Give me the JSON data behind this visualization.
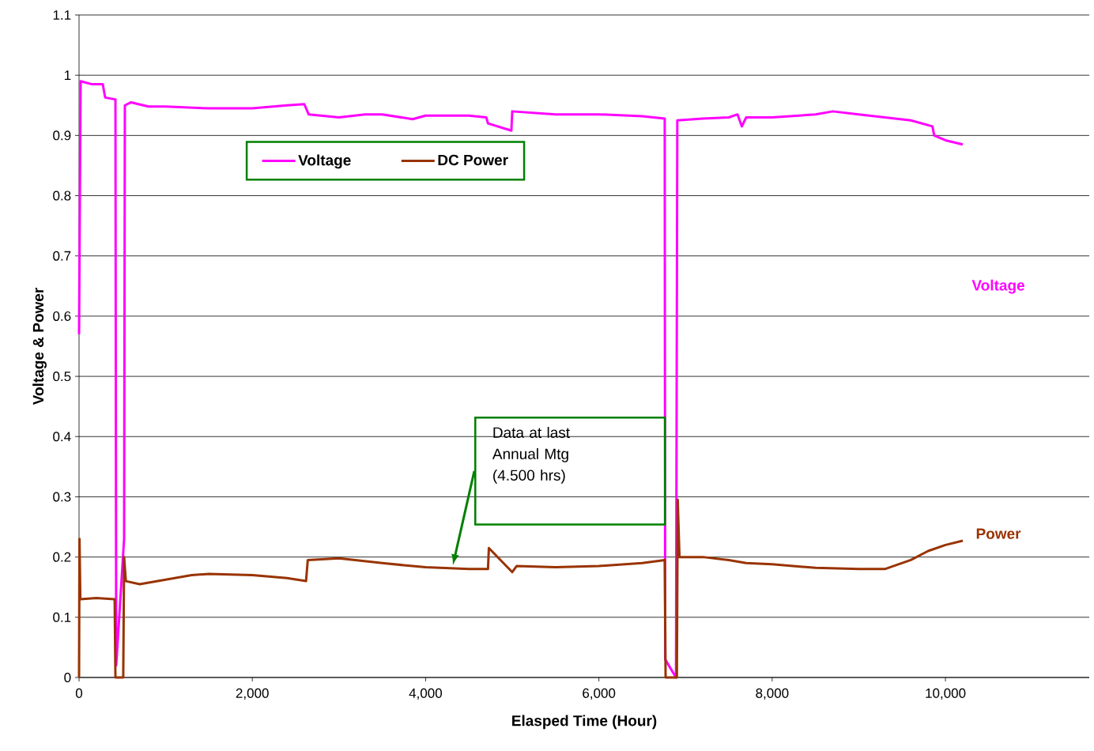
{
  "chart_data": {
    "type": "line",
    "xlabel": "Elasped Time (Hour)",
    "ylabel": "Voltage & Power",
    "xlim": [
      0,
      11660
    ],
    "ylim": [
      0,
      1.1
    ],
    "xticks": [
      0,
      {
        "value": 2000,
        "label": "2,000"
      },
      {
        "value": 4000,
        "label": "4,000"
      },
      {
        "value": 6000,
        "label": "6,000"
      },
      {
        "value": 8000,
        "label": "8,000"
      },
      {
        "value": 10000,
        "label": "10,000"
      }
    ],
    "yticks": [
      0,
      0.1,
      0.2,
      0.3,
      0.4,
      0.5,
      0.6,
      0.7,
      0.8,
      0.9,
      1,
      1.1
    ],
    "grid": "y",
    "legend": "top",
    "marker": "none",
    "line_style": "solid",
    "series": [
      {
        "name": "Voltage",
        "color": "#ff00ff",
        "x": [
          0,
          18,
          150,
          274,
          301,
          411,
          420,
          429,
          520,
          529,
          600,
          800,
          1000,
          1500,
          2000,
          2400,
          2600,
          2650,
          3000,
          3300,
          3500,
          3850,
          4000,
          4500,
          4700,
          4720,
          4990,
          5000,
          5500,
          6000,
          6500,
          6760,
          6765,
          6890,
          6905,
          7200,
          7500,
          7600,
          7650,
          7700,
          8000,
          8500,
          8700,
          9000,
          9300,
          9600,
          9850,
          9870,
          10000,
          10200
        ],
        "values": [
          0.57,
          0.99,
          0.985,
          0.985,
          0.963,
          0.96,
          0.96,
          0.02,
          0.23,
          0.95,
          0.955,
          0.948,
          0.948,
          0.945,
          0.945,
          0.95,
          0.952,
          0.935,
          0.93,
          0.935,
          0.935,
          0.927,
          0.933,
          0.933,
          0.93,
          0.92,
          0.908,
          0.94,
          0.935,
          0.935,
          0.932,
          0.928,
          0.03,
          0.0,
          0.925,
          0.928,
          0.93,
          0.935,
          0.915,
          0.93,
          0.93,
          0.935,
          0.94,
          0.935,
          0.93,
          0.925,
          0.915,
          0.9,
          0.892,
          0.885
        ]
      },
      {
        "name": "DC Power",
        "color": "#993300",
        "x": [
          0,
          5,
          15,
          200,
          411,
          420,
          510,
          520,
          540,
          700,
          900,
          1100,
          1300,
          1500,
          2000,
          2400,
          2620,
          2640,
          3000,
          3500,
          3850,
          4000,
          4500,
          4720,
          4730,
          5000,
          5050,
          5500,
          6000,
          6500,
          6760,
          6770,
          6900,
          6910,
          6930,
          7200,
          7500,
          7700,
          8000,
          8500,
          9000,
          9300,
          9600,
          9800,
          10000,
          10200
        ],
        "values": [
          0.0,
          0.23,
          0.13,
          0.132,
          0.13,
          0.0,
          0.0,
          0.2,
          0.16,
          0.155,
          0.16,
          0.165,
          0.17,
          0.172,
          0.17,
          0.165,
          0.16,
          0.195,
          0.198,
          0.19,
          0.185,
          0.183,
          0.18,
          0.18,
          0.215,
          0.175,
          0.185,
          0.183,
          0.185,
          0.19,
          0.195,
          0.0,
          0.0,
          0.295,
          0.2,
          0.2,
          0.195,
          0.19,
          0.188,
          0.182,
          0.18,
          0.18,
          0.195,
          0.21,
          0.22,
          0.227
        ]
      }
    ],
    "annotations": [
      "Voltage",
      "Power",
      "Data at last Annual Mtg (4.500 hrs)"
    ]
  }
}
